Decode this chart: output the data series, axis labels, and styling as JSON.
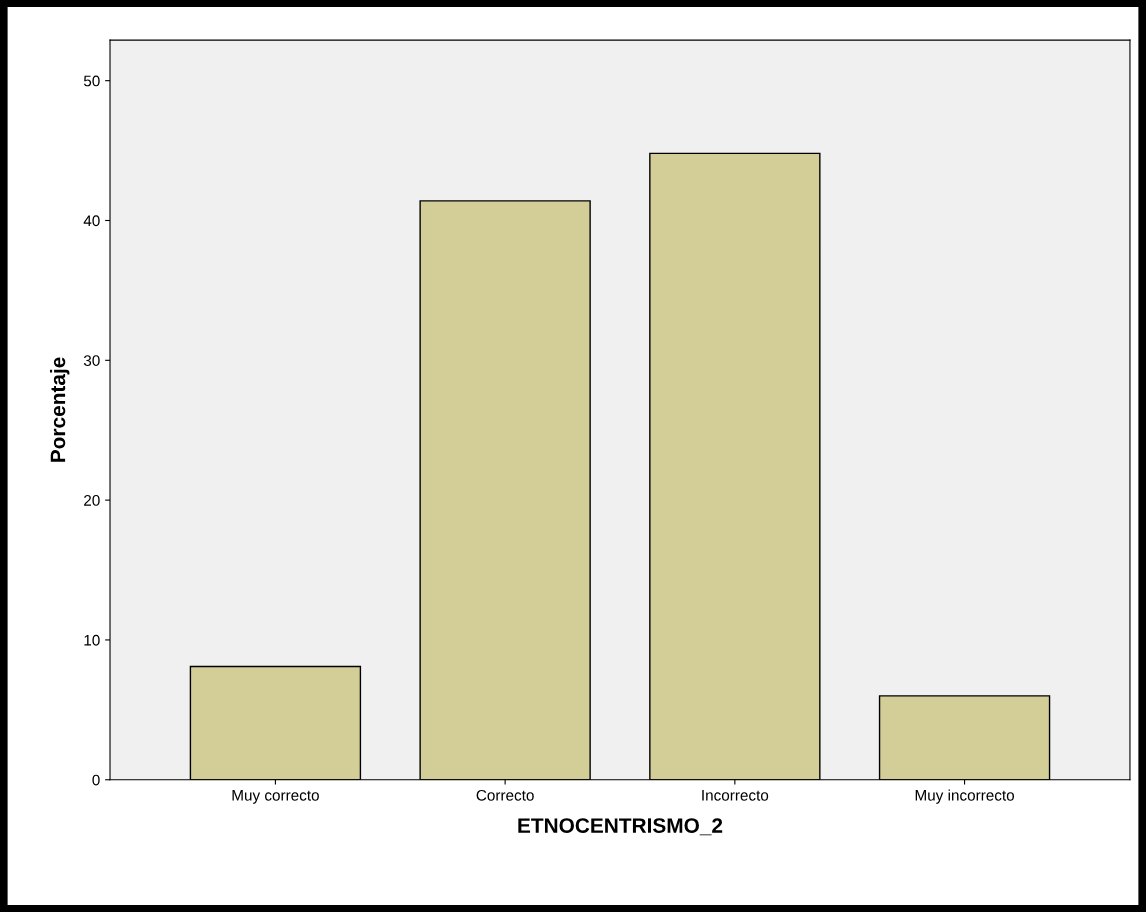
{
  "chart_data": {
    "type": "bar",
    "xlabel": "ETNOCENTRISMO_2",
    "ylabel": "Porcentaje",
    "categories": [
      "Muy correcto",
      "Correcto",
      "Incorrecto",
      "Muy incorrecto"
    ],
    "values": [
      8.1,
      41.4,
      44.8,
      6.0
    ],
    "color": "#d3ce97",
    "ylim": [
      0,
      52.9
    ],
    "yticks": [
      0,
      10,
      20,
      30,
      40,
      50
    ],
    "grid": false,
    "legend": false
  }
}
